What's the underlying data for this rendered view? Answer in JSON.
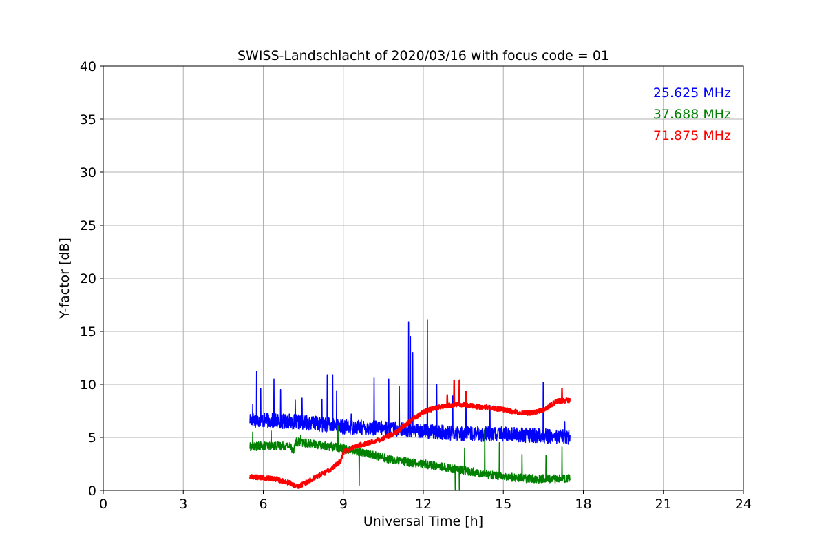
{
  "chart_data": {
    "type": "line",
    "title": "SWISS-Landschlacht of 2020/03/16 with focus code = 01",
    "xlabel": "Universal Time [h]",
    "ylabel": "Y-factor [dB]",
    "xlim": [
      0,
      24
    ],
    "ylim": [
      0,
      40
    ],
    "xticks": [
      0,
      3,
      6,
      9,
      12,
      15,
      18,
      21,
      24
    ],
    "yticks": [
      0,
      5,
      10,
      15,
      20,
      25,
      30,
      35,
      40
    ],
    "xtick_labels": [
      "0",
      "3",
      "6",
      "9",
      "12",
      "15",
      "18",
      "21",
      "24"
    ],
    "ytick_labels": [
      "0",
      "5",
      "10",
      "15",
      "20",
      "25",
      "30",
      "35",
      "40"
    ],
    "grid": true,
    "legend_position": "top-right",
    "series": [
      {
        "name": "25.625 MHz",
        "color": "#0000ff",
        "base": [
          [
            5.5,
            6.7
          ],
          [
            6.0,
            6.6
          ],
          [
            7.0,
            6.5
          ],
          [
            8.0,
            6.3
          ],
          [
            9.0,
            6.0
          ],
          [
            10.0,
            5.9
          ],
          [
            11.0,
            5.8
          ],
          [
            12.0,
            5.6
          ],
          [
            13.0,
            5.4
          ],
          [
            14.0,
            5.3
          ],
          [
            15.0,
            5.3
          ],
          [
            16.0,
            5.2
          ],
          [
            17.0,
            5.1
          ],
          [
            17.5,
            5.0
          ]
        ],
        "noise": 0.7,
        "spikes": [
          [
            5.6,
            8.1
          ],
          [
            5.75,
            11.2
          ],
          [
            5.9,
            9.6
          ],
          [
            6.4,
            10.5
          ],
          [
            6.65,
            9.5
          ],
          [
            6.85,
            9.0
          ],
          [
            7.2,
            8.5
          ],
          [
            7.45,
            8.7
          ],
          [
            8.2,
            8.6
          ],
          [
            8.4,
            10.9
          ],
          [
            8.6,
            10.9
          ],
          [
            8.75,
            9.4
          ],
          [
            9.3,
            7.2
          ],
          [
            10.15,
            10.6
          ],
          [
            10.7,
            10.5
          ],
          [
            11.1,
            9.8
          ],
          [
            11.45,
            15.9
          ],
          [
            11.52,
            14.5
          ],
          [
            11.6,
            13.0
          ],
          [
            12.15,
            16.1
          ],
          [
            12.5,
            10.0
          ],
          [
            13.1,
            8.9
          ],
          [
            13.6,
            9.1
          ],
          [
            14.5,
            8.0
          ],
          [
            16.5,
            10.2
          ],
          [
            17.3,
            6.5
          ]
        ]
      },
      {
        "name": "37.688 MHz",
        "color": "#008000",
        "base": [
          [
            5.5,
            4.1
          ],
          [
            6.0,
            4.2
          ],
          [
            7.0,
            4.2
          ],
          [
            7.15,
            3.8
          ],
          [
            7.2,
            4.6
          ],
          [
            8.0,
            4.3
          ],
          [
            9.0,
            4.0
          ],
          [
            10.0,
            3.4
          ],
          [
            11.0,
            2.8
          ],
          [
            12.0,
            2.5
          ],
          [
            13.0,
            2.1
          ],
          [
            14.0,
            1.7
          ],
          [
            15.0,
            1.3
          ],
          [
            16.0,
            1.1
          ],
          [
            17.0,
            1.1
          ],
          [
            17.5,
            1.1
          ]
        ],
        "noise": 0.4,
        "spikes": [
          [
            5.6,
            5.5
          ],
          [
            6.3,
            5.6
          ],
          [
            7.4,
            5.2
          ],
          [
            8.8,
            6.1
          ],
          [
            9.6,
            0.5
          ],
          [
            13.2,
            0.0
          ],
          [
            13.35,
            0.0
          ],
          [
            13.55,
            4.0
          ],
          [
            14.3,
            5.8
          ],
          [
            14.85,
            4.5
          ],
          [
            15.7,
            3.4
          ],
          [
            16.6,
            3.3
          ],
          [
            17.2,
            4.1
          ]
        ]
      },
      {
        "name": "71.875 MHz",
        "color": "#ff0000",
        "base": [
          [
            5.5,
            1.3
          ],
          [
            6.0,
            1.2
          ],
          [
            6.5,
            1.05
          ],
          [
            7.0,
            0.7
          ],
          [
            7.25,
            0.3
          ],
          [
            7.5,
            0.6
          ],
          [
            8.0,
            1.3
          ],
          [
            8.5,
            1.9
          ],
          [
            8.9,
            2.8
          ],
          [
            9.0,
            3.6
          ],
          [
            9.5,
            4.2
          ],
          [
            10.0,
            4.5
          ],
          [
            10.5,
            4.9
          ],
          [
            11.0,
            5.5
          ],
          [
            11.5,
            6.5
          ],
          [
            12.0,
            7.4
          ],
          [
            12.5,
            7.8
          ],
          [
            13.0,
            8.0
          ],
          [
            13.5,
            8.1
          ],
          [
            14.0,
            7.9
          ],
          [
            14.5,
            7.8
          ],
          [
            15.0,
            7.6
          ],
          [
            15.5,
            7.4
          ],
          [
            16.0,
            7.3
          ],
          [
            16.5,
            7.6
          ],
          [
            17.0,
            8.4
          ],
          [
            17.5,
            8.5
          ]
        ],
        "noise": 0.22,
        "spikes": [
          [
            12.9,
            9.0
          ],
          [
            13.15,
            10.4
          ],
          [
            13.35,
            10.4
          ],
          [
            13.6,
            9.3
          ],
          [
            17.2,
            9.6
          ]
        ]
      }
    ]
  }
}
